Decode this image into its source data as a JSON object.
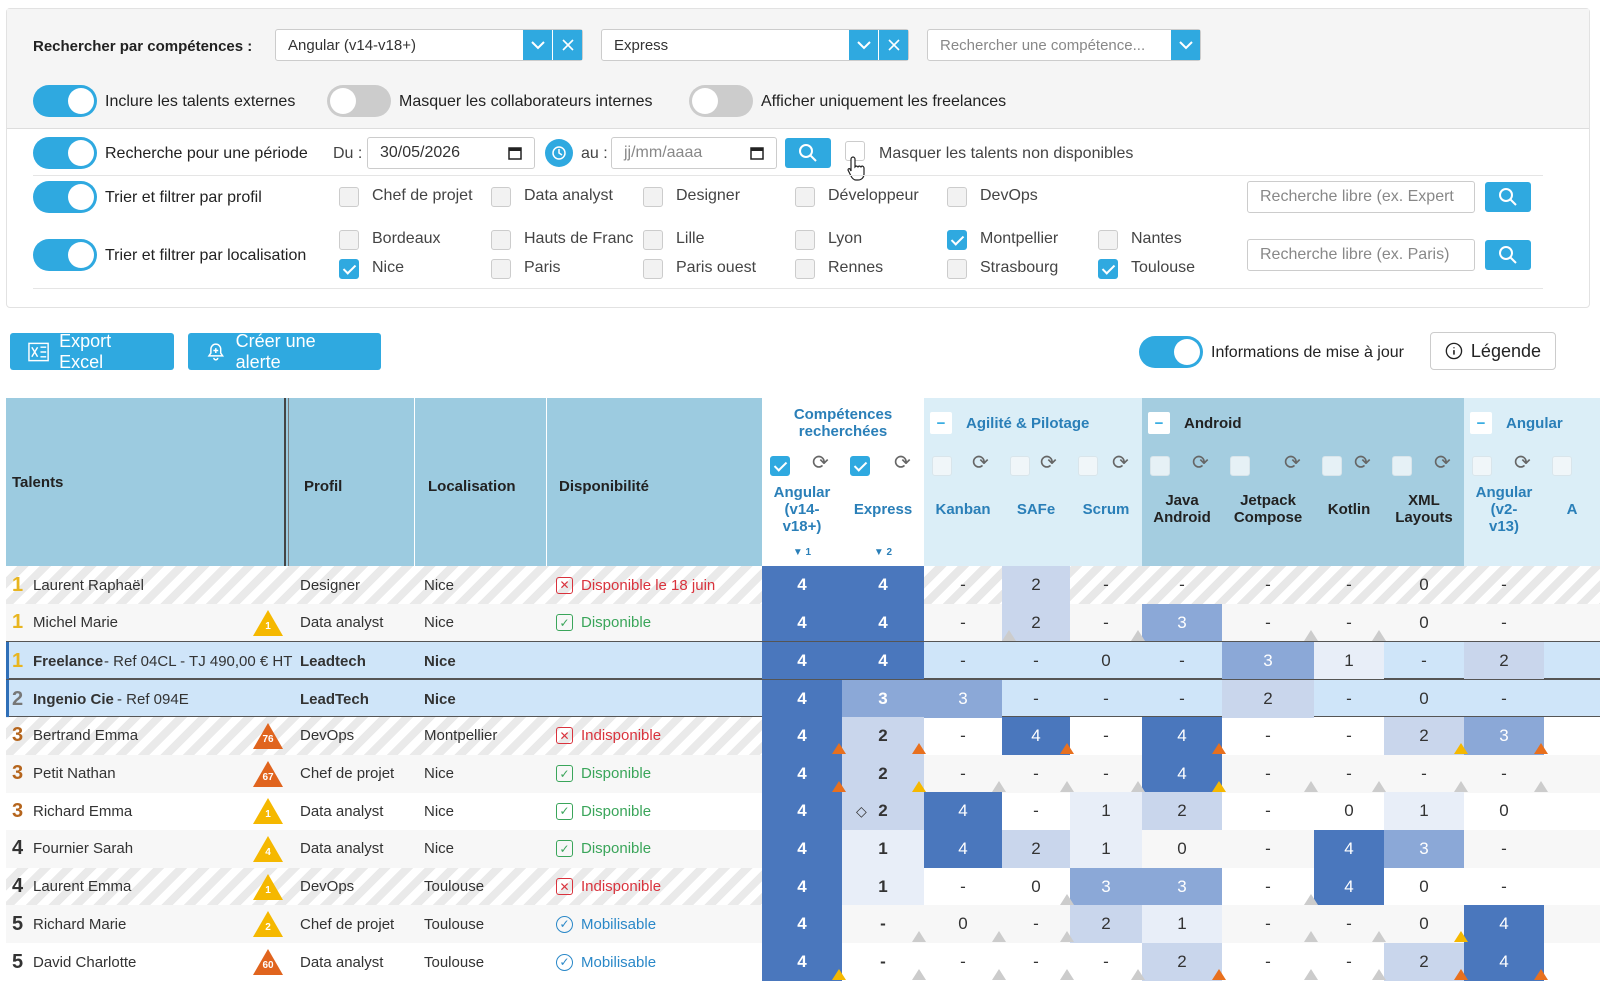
{
  "filters": {
    "skill_label": "Rechercher par compétences :",
    "skill1": "Angular (v14-v18+)",
    "skill2": "Express",
    "skill3_placeholder": "Rechercher une compétence...",
    "toggle_external": "Inclure les talents externes",
    "toggle_hide_internal": "Masquer les collaborateurs internes",
    "toggle_freelance": "Afficher uniquement les freelances",
    "toggle_period": "Recherche pour une période",
    "du_label": "Du :",
    "date_from": "30/05/2026",
    "au_label": "au :",
    "date_to_placeholder": "jj/mm/aaaa",
    "hide_unavailable": "Masquer les talents non disponibles",
    "toggle_profile": "Trier et filtrer par profil",
    "profiles": [
      {
        "label": "Chef de projet",
        "checked": false
      },
      {
        "label": "Data analyst",
        "checked": false
      },
      {
        "label": "Designer",
        "checked": false
      },
      {
        "label": "Développeur",
        "checked": false
      },
      {
        "label": "DevOps",
        "checked": false
      }
    ],
    "profile_search_placeholder": "Recherche libre (ex. Expert",
    "toggle_location": "Trier et filtrer par localisation",
    "locations": [
      {
        "label": "Bordeaux",
        "checked": false
      },
      {
        "label": "Hauts de Franc",
        "checked": false
      },
      {
        "label": "Lille",
        "checked": false
      },
      {
        "label": "Lyon",
        "checked": false
      },
      {
        "label": "Montpellier",
        "checked": true
      },
      {
        "label": "Nantes",
        "checked": false
      },
      {
        "label": "Nice",
        "checked": true
      },
      {
        "label": "Paris",
        "checked": false
      },
      {
        "label": "Paris ouest",
        "checked": false
      },
      {
        "label": "Rennes",
        "checked": false
      },
      {
        "label": "Strasbourg",
        "checked": false
      },
      {
        "label": "Toulouse",
        "checked": true
      }
    ],
    "location_search_placeholder": "Recherche libre (ex. Paris)"
  },
  "actions": {
    "export": "Export Excel",
    "alert": "Créer une alerte",
    "update_info": "Informations de mise à jour",
    "legend": "Légende"
  },
  "table": {
    "headers": {
      "talents": "Talents",
      "profil": "Profil",
      "localisation": "Localisation",
      "disponibilite": "Disponibilité",
      "competences": "Compétences recherchées"
    },
    "groups": [
      "Agilité & Pilotage",
      "Android",
      "Angular"
    ],
    "skill_columns": [
      "Angular (v14- v18+)",
      "Express",
      "Kanban",
      "SAFe",
      "Scrum",
      "Java Android",
      "Jetpack Compose",
      "Kotlin",
      "XML Layouts",
      "Angular (v2- v13)",
      "A"
    ],
    "sort_marks": [
      "▼ 1",
      "▼ 2"
    ],
    "rows": [
      {
        "rank": "1",
        "name": "Laurent Raphaël",
        "extra": "",
        "badge": "",
        "profil": "Designer",
        "loc": "Nice",
        "status": "Disponible le 18 juin",
        "stype": "x",
        "vals": [
          "4",
          "4",
          "-",
          "2",
          "-",
          "-",
          "-",
          "-",
          "0",
          "-"
        ]
      },
      {
        "rank": "1",
        "name": "Michel Marie",
        "extra": "",
        "badge": "1",
        "profil": "Data analyst",
        "loc": "Nice",
        "status": "Disponible",
        "stype": "ok",
        "vals": [
          "4",
          "4",
          "-",
          "2",
          "-",
          "3",
          "-",
          "-",
          "0",
          "-"
        ]
      },
      {
        "rank": "1",
        "name": "Freelance",
        "extra": " - Ref 04CL - TJ 490,00 € HT",
        "badge": "",
        "profil": "Leadtech",
        "loc": "Nice",
        "status": "",
        "stype": "",
        "vals": [
          "4",
          "4",
          "-",
          "-",
          "0",
          "-",
          "3",
          "1",
          "-",
          "2"
        ]
      },
      {
        "rank": "2",
        "name": "Ingenio Cie",
        "extra": " - Ref 094E",
        "badge": "",
        "profil": "LeadTech",
        "loc": "Nice",
        "status": "",
        "stype": "",
        "vals": [
          "4",
          "3",
          "3",
          "-",
          "-",
          "-",
          "2",
          "-",
          "0",
          "-"
        ]
      },
      {
        "rank": "3",
        "name": "Bertrand Emma",
        "extra": "",
        "badge": "76",
        "profil": "DevOps",
        "loc": "Montpellier",
        "status": "Indisponible",
        "stype": "x",
        "vals": [
          "4",
          "2",
          "-",
          "4",
          "-",
          "4",
          "-",
          "-",
          "2",
          "3"
        ]
      },
      {
        "rank": "3",
        "name": "Petit Nathan",
        "extra": "",
        "badge": "67",
        "profil": "Chef de projet",
        "loc": "Nice",
        "status": "Disponible",
        "stype": "ok",
        "vals": [
          "4",
          "2",
          "-",
          "-",
          "-",
          "4",
          "-",
          "-",
          "-",
          "-"
        ]
      },
      {
        "rank": "3",
        "name": "Richard Emma",
        "extra": "",
        "badge": "1",
        "profil": "Data analyst",
        "loc": "Nice",
        "status": "Disponible",
        "stype": "ok",
        "vals": [
          "4",
          "2",
          "4",
          "-",
          "1",
          "2",
          "-",
          "0",
          "1",
          "0"
        ]
      },
      {
        "rank": "4",
        "name": "Fournier Sarah",
        "extra": "",
        "badge": "4",
        "profil": "Data analyst",
        "loc": "Nice",
        "status": "Disponible",
        "stype": "ok",
        "vals": [
          "4",
          "1",
          "4",
          "2",
          "1",
          "0",
          "-",
          "4",
          "3",
          "-"
        ]
      },
      {
        "rank": "4",
        "name": "Laurent Emma",
        "extra": "",
        "badge": "1",
        "profil": "DevOps",
        "loc": "Toulouse",
        "status": "Indisponible",
        "stype": "x",
        "vals": [
          "4",
          "1",
          "-",
          "0",
          "3",
          "3",
          "-",
          "4",
          "0",
          "-"
        ]
      },
      {
        "rank": "5",
        "name": "Richard Marie",
        "extra": "",
        "badge": "2",
        "profil": "Chef de projet",
        "loc": "Toulouse",
        "status": "Mobilisable",
        "stype": "mob",
        "vals": [
          "4",
          "-",
          "0",
          "-",
          "2",
          "1",
          "-",
          "-",
          "0",
          "4"
        ]
      },
      {
        "rank": "5",
        "name": "David Charlotte",
        "extra": "",
        "badge": "60",
        "profil": "Data analyst",
        "loc": "Toulouse",
        "status": "Mobilisable",
        "stype": "mob",
        "vals": [
          "4",
          "-",
          "-",
          "-",
          "-",
          "2",
          "-",
          "-",
          "2",
          "4"
        ]
      }
    ]
  }
}
